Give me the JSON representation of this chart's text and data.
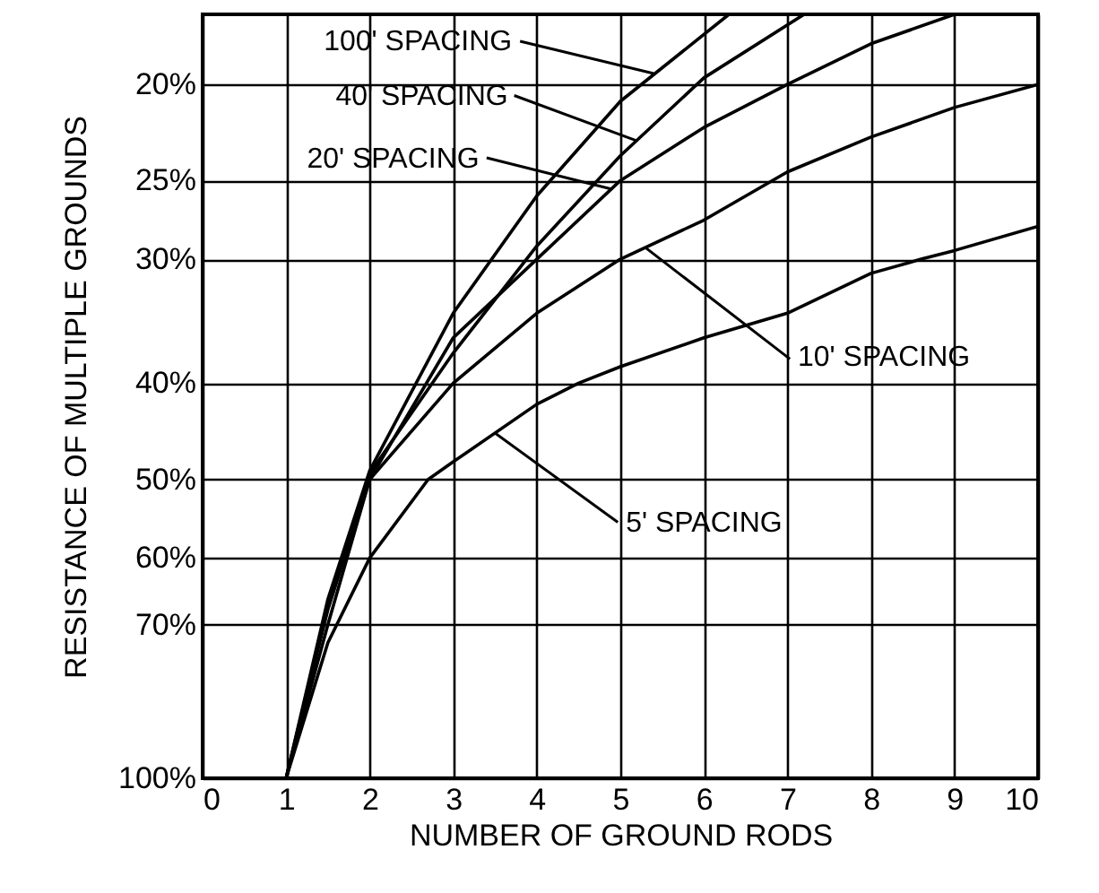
{
  "chart_data": {
    "type": "line",
    "xlabel": "NUMBER OF GROUND RODS",
    "ylabel": "RESISTANCE OF MULTIPLE GROUNDS",
    "xlim": [
      0,
      10
    ],
    "xticks": [
      0,
      1,
      2,
      3,
      4,
      5,
      6,
      7,
      8,
      9,
      10
    ],
    "ylim": [
      100,
      17
    ],
    "yticks": [
      {
        "value": 100,
        "label": "100%"
      },
      {
        "value": 70,
        "label": "70%"
      },
      {
        "value": 60,
        "label": "60%"
      },
      {
        "value": 50,
        "label": "50%"
      },
      {
        "value": 40,
        "label": "40%"
      },
      {
        "value": 30,
        "label": "30%"
      },
      {
        "value": 25,
        "label": "25%"
      },
      {
        "value": 20,
        "label": "20%"
      }
    ],
    "log": "y",
    "grid": true,
    "legend": false,
    "marker": "none",
    "line_style": "solid",
    "series": [
      {
        "color": "#000000",
        "x": [
          1,
          1.5,
          2,
          2.7,
          3,
          4,
          4.5,
          5,
          6,
          7,
          8,
          8.6,
          9,
          10
        ],
        "values": [
          100,
          73,
          60,
          50,
          48,
          42,
          40,
          38.5,
          36,
          34,
          31,
          30,
          29.4,
          27.8
        ]
      },
      {
        "color": "#000000",
        "x": [
          1,
          1.5,
          2,
          3,
          4,
          5,
          6,
          7,
          8,
          9,
          10
        ],
        "values": [
          100,
          70,
          50,
          40,
          34,
          30,
          27.4,
          24.5,
          22.6,
          21.1,
          20
        ]
      },
      {
        "color": "#000000",
        "x": [
          1,
          1.5,
          2,
          3,
          4,
          5,
          6,
          7,
          8,
          9
        ],
        "values": [
          100,
          67.6,
          50,
          36,
          30,
          25,
          22.1,
          20,
          18.2,
          17
        ]
      },
      {
        "color": "#000000",
        "x": [
          1,
          1.5,
          2,
          3,
          4,
          5,
          6,
          7.2
        ],
        "values": [
          100,
          67,
          49.3,
          37.3,
          29.1,
          23.6,
          19.7,
          17
        ]
      },
      {
        "color": "#000000",
        "x": [
          1,
          1.5,
          2,
          3,
          4,
          5,
          6.3
        ],
        "values": [
          100,
          66,
          49,
          34,
          25.9,
          20.8,
          17
        ]
      }
    ],
    "annotations": [
      {
        "text": "100' SPACING",
        "x": 5.4,
        "y": 19.5
      },
      {
        "text": "40' SPACING",
        "x": 5.2,
        "y": 22.8
      },
      {
        "text": "20' SPACING",
        "x": 4.9,
        "y": 25.5
      },
      {
        "text": "10' SPACING",
        "x": 5.3,
        "y": 29.2
      },
      {
        "text": "5' SPACING",
        "x": 3.5,
        "y": 44.9
      }
    ]
  }
}
